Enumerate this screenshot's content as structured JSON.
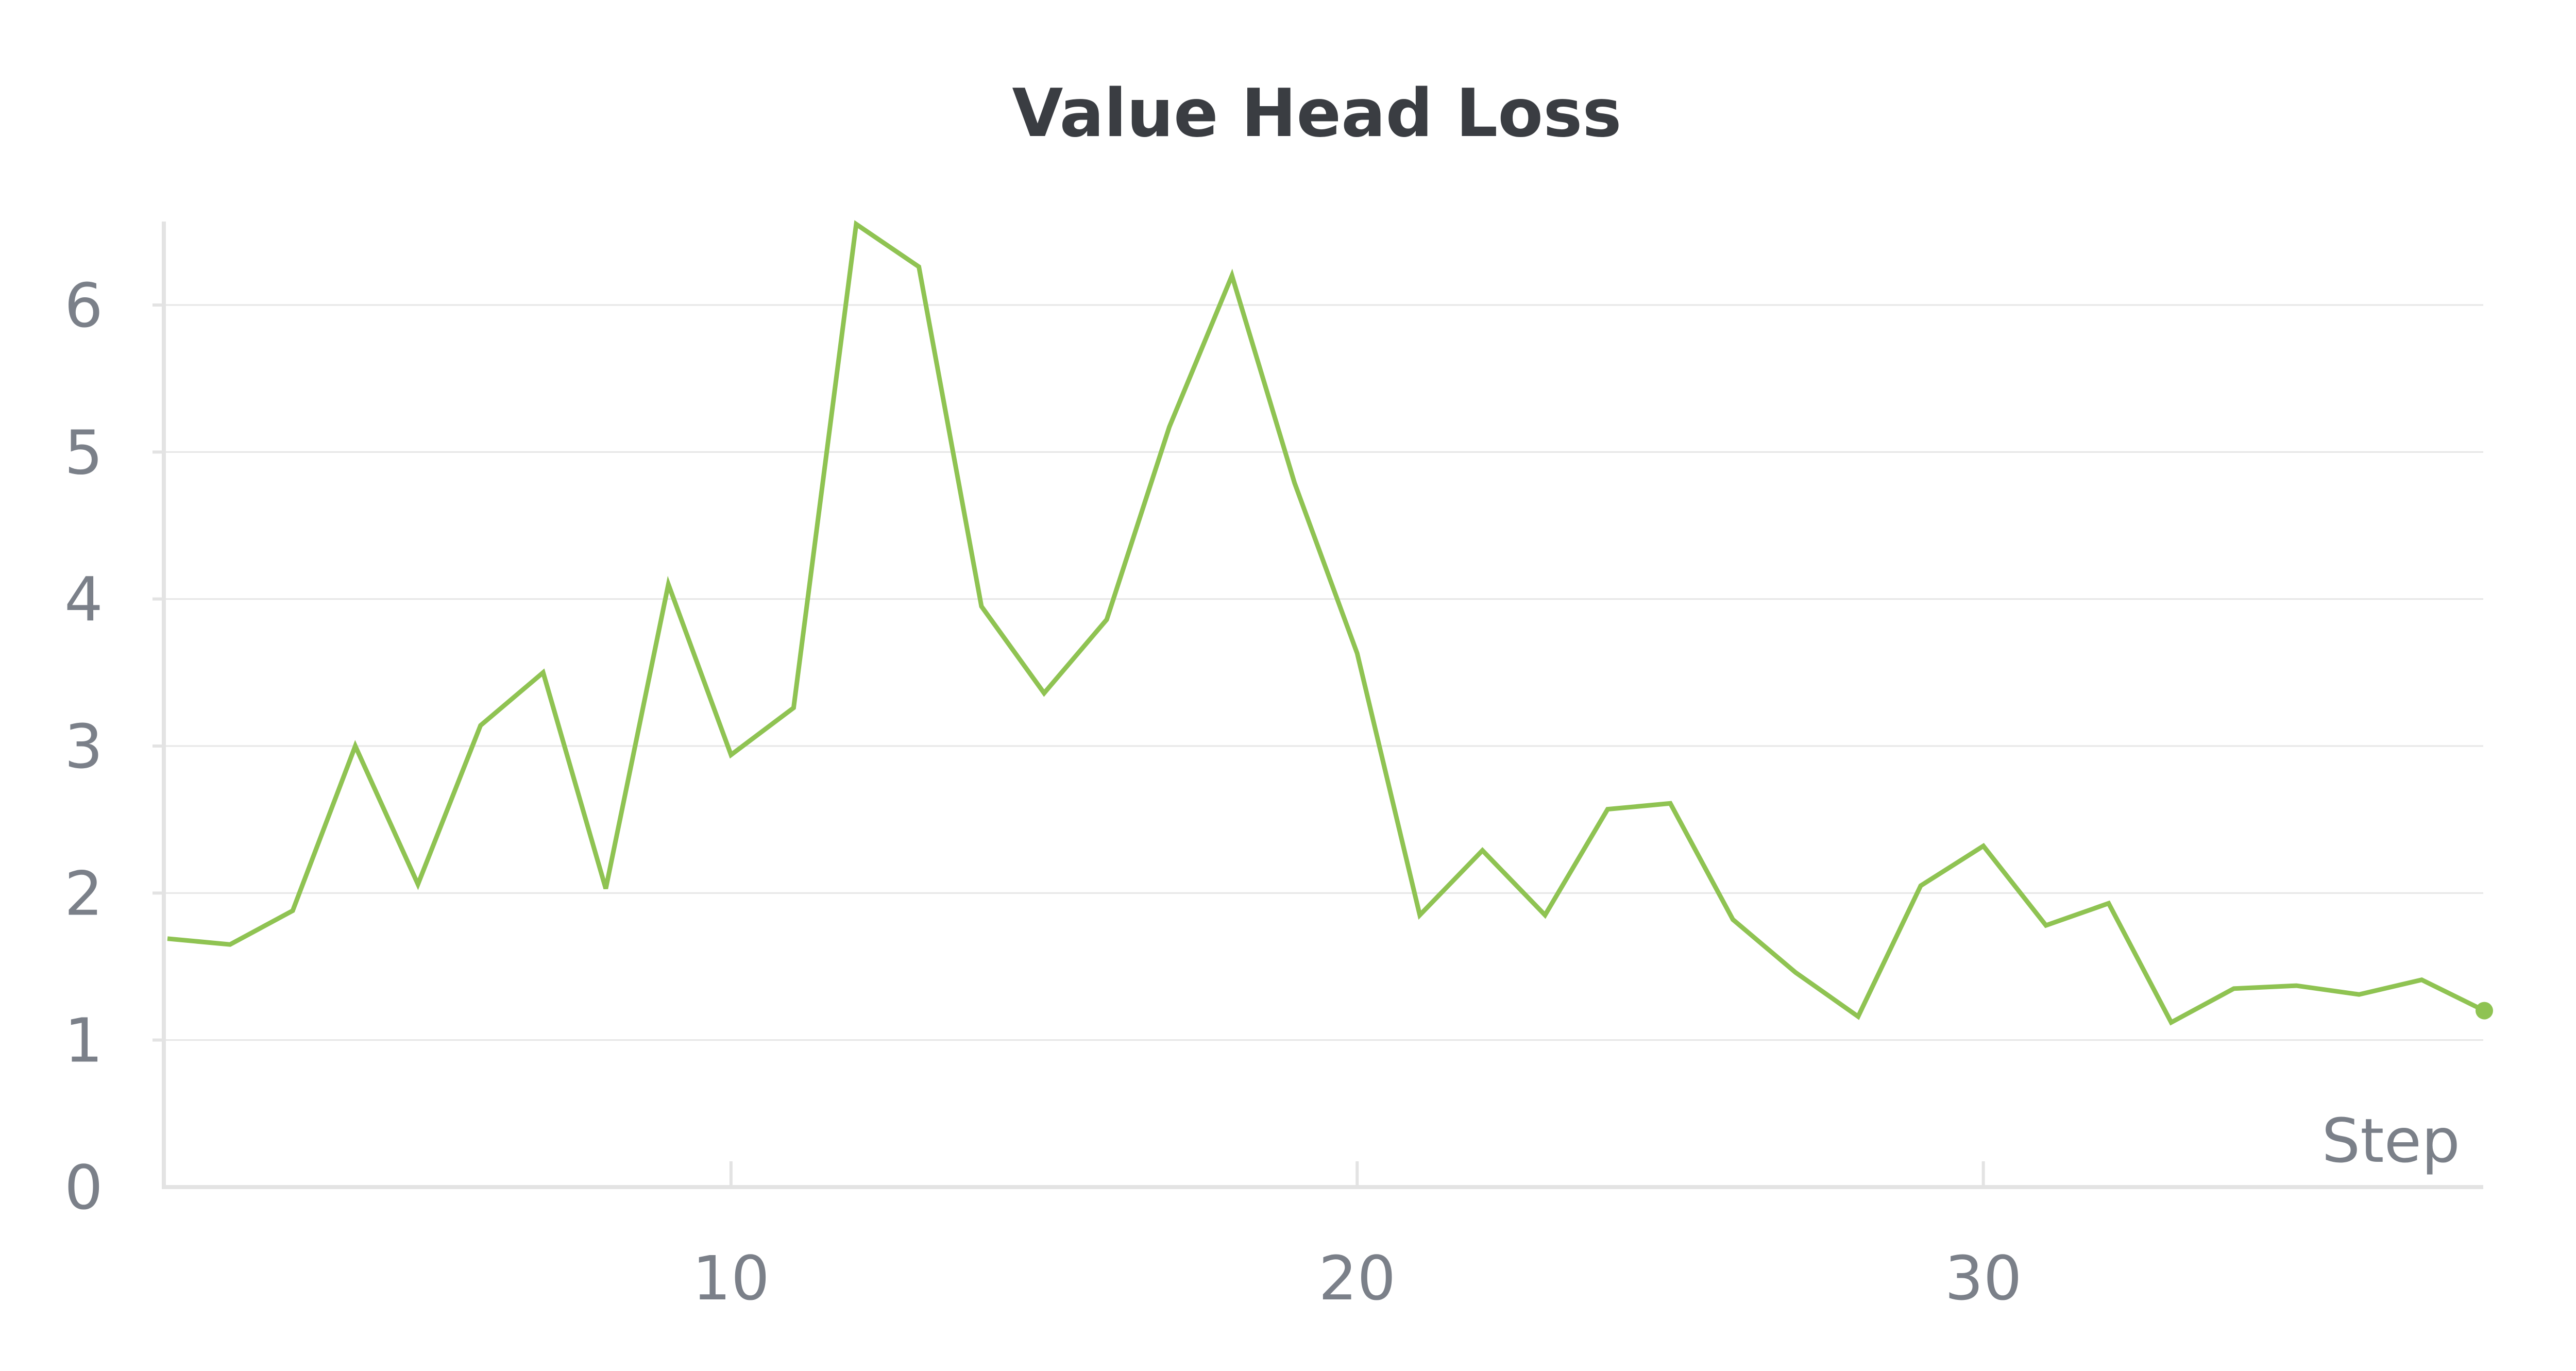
{
  "chart_data": {
    "type": "line",
    "title": "Value Head Loss",
    "xlabel": "Step",
    "ylabel": "",
    "xlim": [
      1,
      38
    ],
    "ylim": [
      0,
      6.6
    ],
    "xticks": [
      10,
      20,
      30
    ],
    "yticks": [
      0,
      1,
      2,
      3,
      4,
      5,
      6
    ],
    "grid": true,
    "colors": {
      "line": "#8fc352",
      "grid": "#e6e6e6",
      "axis": "#e3e3e3",
      "text": "#7b8089",
      "title": "#3a3d42"
    },
    "series": [
      {
        "x": [
          1,
          2,
          3,
          4,
          5,
          6,
          7,
          8,
          9,
          10,
          11,
          12,
          13,
          14,
          15,
          16,
          17,
          18,
          19,
          20,
          21,
          22,
          23,
          24,
          25,
          26,
          27,
          28,
          29,
          30,
          31,
          32,
          33,
          34,
          35,
          36,
          37,
          38
        ],
        "values": [
          1.69,
          1.65,
          1.88,
          3.0,
          2.06,
          3.14,
          3.5,
          2.03,
          4.1,
          2.94,
          3.26,
          6.55,
          6.26,
          3.95,
          3.36,
          3.86,
          5.17,
          6.2,
          4.79,
          3.63,
          1.85,
          2.29,
          1.85,
          2.57,
          2.61,
          1.82,
          1.46,
          1.16,
          2.05,
          2.32,
          1.78,
          1.93,
          1.12,
          1.35,
          1.37,
          1.31,
          1.41,
          1.2
        ]
      }
    ]
  }
}
